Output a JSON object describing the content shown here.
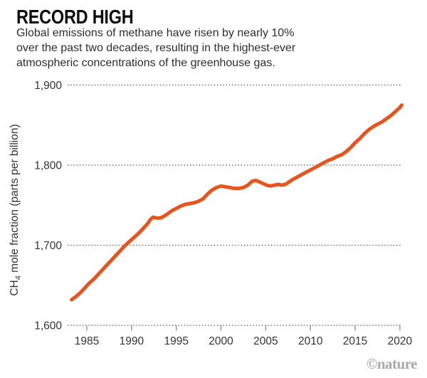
{
  "header": {
    "title": "RECORD HIGH",
    "subtitle_lines": [
      "Global emissions of methane have risen by nearly 10%",
      "over the past two decades, resulting in the highest-ever",
      "atmospheric concentrations of the greenhouse gas."
    ]
  },
  "ylabel": {
    "prefix": "CH",
    "sub": "4",
    "suffix": " mole fraction (parts per billion)"
  },
  "footer": {
    "credit": "©nature"
  },
  "colors": {
    "accent_orange": "#E6551E",
    "grid_dots": "#3d3d3d",
    "tick_gray": "#9a9a9a",
    "axis_text": "#333333",
    "credit_gray": "#a9a9a9"
  },
  "chart_data": {
    "type": "line",
    "title": "RECORD HIGH",
    "xlabel": "",
    "ylabel": "CH4 mole fraction (parts per billion)",
    "grid": "horizontal-dotted",
    "legend": "none",
    "x_range": [
      1982.85,
      2020.25
    ],
    "y_range": [
      1600,
      1900
    ],
    "x_ticks": [
      1985,
      1990,
      1995,
      2000,
      2005,
      2010,
      2015,
      2020
    ],
    "y_ticks": [
      1600,
      1700,
      1800,
      1900
    ],
    "y_tick_labels": [
      "1,600",
      "1,700",
      "1,800",
      "1,900"
    ],
    "line_color": "#E6551E",
    "grid_color": "#3d3d3d",
    "tick_color": "#9a9a9a",
    "axis_text_color": "#333333",
    "series": [
      {
        "name": "Global atmospheric CH4 mole fraction (parts per billion)",
        "points": [
          [
            1983.3,
            1632
          ],
          [
            1983.8,
            1636
          ],
          [
            1984.3,
            1641
          ],
          [
            1984.8,
            1647
          ],
          [
            1985.3,
            1653
          ],
          [
            1985.8,
            1658
          ],
          [
            1986.3,
            1664
          ],
          [
            1986.8,
            1670
          ],
          [
            1987.3,
            1676
          ],
          [
            1987.8,
            1682
          ],
          [
            1988.3,
            1688
          ],
          [
            1988.8,
            1694
          ],
          [
            1989.3,
            1700
          ],
          [
            1989.8,
            1705
          ],
          [
            1990.3,
            1710
          ],
          [
            1990.8,
            1715
          ],
          [
            1991.3,
            1721
          ],
          [
            1991.8,
            1727
          ],
          [
            1992.1,
            1732
          ],
          [
            1992.4,
            1735
          ],
          [
            1992.8,
            1734
          ],
          [
            1993.2,
            1734
          ],
          [
            1993.6,
            1736
          ],
          [
            1994.0,
            1739
          ],
          [
            1994.5,
            1743
          ],
          [
            1995.0,
            1746
          ],
          [
            1995.5,
            1749
          ],
          [
            1996.0,
            1751
          ],
          [
            1996.5,
            1752
          ],
          [
            1997.0,
            1753
          ],
          [
            1997.5,
            1755
          ],
          [
            1998.0,
            1758
          ],
          [
            1998.5,
            1764
          ],
          [
            1999.0,
            1769
          ],
          [
            1999.5,
            1772
          ],
          [
            2000.0,
            1774
          ],
          [
            2000.5,
            1773
          ],
          [
            2001.0,
            1772
          ],
          [
            2001.5,
            1771
          ],
          [
            2002.0,
            1771
          ],
          [
            2002.5,
            1772
          ],
          [
            2003.0,
            1775
          ],
          [
            2003.5,
            1780
          ],
          [
            2003.9,
            1781
          ],
          [
            2004.3,
            1779
          ],
          [
            2004.7,
            1777
          ],
          [
            2005.1,
            1775
          ],
          [
            2005.5,
            1774
          ],
          [
            2006.0,
            1775
          ],
          [
            2006.4,
            1776
          ],
          [
            2006.8,
            1775
          ],
          [
            2007.2,
            1776
          ],
          [
            2007.6,
            1779
          ],
          [
            2008.0,
            1782
          ],
          [
            2008.5,
            1785
          ],
          [
            2009.0,
            1788
          ],
          [
            2009.5,
            1791
          ],
          [
            2010.0,
            1794
          ],
          [
            2010.5,
            1797
          ],
          [
            2011.0,
            1800
          ],
          [
            2011.5,
            1803
          ],
          [
            2012.0,
            1806
          ],
          [
            2012.5,
            1808
          ],
          [
            2013.0,
            1811
          ],
          [
            2013.5,
            1813
          ],
          [
            2014.0,
            1817
          ],
          [
            2014.5,
            1822
          ],
          [
            2015.0,
            1828
          ],
          [
            2015.5,
            1833
          ],
          [
            2016.0,
            1839
          ],
          [
            2016.5,
            1844
          ],
          [
            2017.0,
            1848
          ],
          [
            2017.5,
            1851
          ],
          [
            2018.0,
            1854
          ],
          [
            2018.5,
            1858
          ],
          [
            2019.0,
            1862
          ],
          [
            2019.5,
            1867
          ],
          [
            2020.0,
            1872
          ],
          [
            2020.2,
            1875
          ]
        ]
      }
    ]
  }
}
